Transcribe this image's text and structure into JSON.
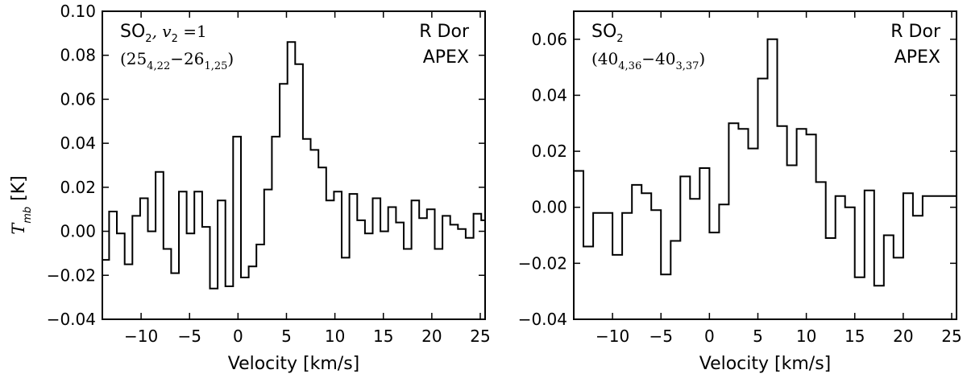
{
  "figure": {
    "ylabel_symbol": "T",
    "ylabel_sub": "mb",
    "ylabel_unit": " [K]"
  },
  "chart_data": [
    {
      "type": "line",
      "drawstyle": "steps-mid",
      "xlabel": "Velocity [km/s]",
      "ylabel": "T_mb [K]",
      "xlim": [
        -14,
        25.5
      ],
      "ylim": [
        -0.04,
        0.1
      ],
      "xticks": [
        -10,
        -5,
        0,
        5,
        10,
        15,
        20,
        25
      ],
      "xtick_labels": [
        "−10",
        "−5",
        "0",
        "5",
        "10",
        "15",
        "20",
        "25"
      ],
      "yticks": [
        -0.04,
        -0.02,
        0.0,
        0.02,
        0.04,
        0.06,
        0.08,
        0.1
      ],
      "ytick_labels": [
        "−0.04",
        "−0.02",
        "0.00",
        "0.02",
        "0.04",
        "0.06",
        "0.08",
        "0.10"
      ],
      "annotation_left": {
        "line1": "SO",
        "line1_sub": "2",
        "line1_rest": ", v",
        "line1_rest_sub": "2",
        "line1_end": " =1",
        "line2_open": "(25",
        "line2_sub1": "4,22",
        "line2_mid": "−26",
        "line2_sub2": "1,25",
        "line2_close": ")"
      },
      "annotation_right": {
        "line1": "R Dor",
        "line2": "APEX"
      },
      "x": [
        -13.7,
        -12.9,
        -12.1,
        -11.3,
        -10.5,
        -9.7,
        -8.9,
        -8.1,
        -7.3,
        -6.5,
        -5.7,
        -4.9,
        -4.1,
        -3.3,
        -2.5,
        -1.7,
        -0.9,
        -0.1,
        0.7,
        1.5,
        2.3,
        3.1,
        3.9,
        4.7,
        5.5,
        6.3,
        7.1,
        7.9,
        8.7,
        9.5,
        10.3,
        11.1,
        11.9,
        12.7,
        13.5,
        14.3,
        15.1,
        15.9,
        16.7,
        17.5,
        18.3,
        19.1,
        19.9,
        20.7,
        21.5,
        22.3,
        23.1,
        23.9,
        24.7,
        25.5
      ],
      "values": [
        -0.013,
        0.009,
        -0.001,
        -0.015,
        0.007,
        0.015,
        0.0,
        0.027,
        -0.008,
        -0.019,
        0.018,
        -0.001,
        0.018,
        0.002,
        -0.026,
        0.014,
        -0.025,
        0.043,
        -0.021,
        -0.016,
        -0.006,
        0.019,
        0.043,
        0.067,
        0.086,
        0.076,
        0.042,
        0.037,
        0.029,
        0.014,
        0.018,
        -0.012,
        0.017,
        0.005,
        -0.001,
        0.015,
        0.0,
        0.011,
        0.004,
        -0.008,
        0.014,
        0.006,
        0.01,
        -0.008,
        0.007,
        0.003,
        0.001,
        -0.003,
        0.008,
        0.005
      ]
    },
    {
      "type": "line",
      "drawstyle": "steps-mid",
      "xlabel": "Velocity [km/s]",
      "ylabel": "",
      "xlim": [
        -14,
        25.5
      ],
      "ylim": [
        -0.04,
        0.07
      ],
      "xticks": [
        -10,
        -5,
        0,
        5,
        10,
        15,
        20,
        25
      ],
      "xtick_labels": [
        "−10",
        "−5",
        "0",
        "5",
        "10",
        "15",
        "20",
        "25"
      ],
      "yticks": [
        -0.04,
        -0.02,
        0.0,
        0.02,
        0.04,
        0.06
      ],
      "ytick_labels": [
        "−0.04",
        "−0.02",
        "0.00",
        "0.02",
        "0.04",
        "0.06"
      ],
      "annotation_left": {
        "line1": "SO",
        "line1_sub": "2",
        "line2_open": "(40",
        "line2_sub1": "4,36",
        "line2_mid": "−40",
        "line2_sub2": "3,37",
        "line2_close": ")"
      },
      "annotation_right": {
        "line1": "R Dor",
        "line2": "APEX"
      },
      "x": [
        -13.5,
        -12.5,
        -11.5,
        -10.5,
        -9.5,
        -8.5,
        -7.5,
        -6.5,
        -5.5,
        -4.5,
        -3.5,
        -2.5,
        -1.5,
        -0.5,
        0.5,
        1.5,
        2.5,
        3.5,
        4.5,
        5.5,
        6.5,
        7.5,
        8.5,
        9.5,
        10.5,
        11.5,
        12.5,
        13.5,
        14.5,
        15.5,
        16.5,
        17.5,
        18.5,
        19.5,
        20.5,
        21.5,
        22.5,
        23.5,
        24.5,
        25.5
      ],
      "values": [
        0.013,
        -0.014,
        -0.002,
        -0.002,
        -0.017,
        -0.002,
        0.008,
        0.005,
        -0.001,
        -0.024,
        -0.012,
        0.011,
        0.003,
        0.014,
        -0.009,
        0.001,
        0.03,
        0.028,
        0.021,
        0.046,
        0.06,
        0.029,
        0.015,
        0.028,
        0.026,
        0.009,
        -0.011,
        0.004,
        0.0,
        -0.025,
        0.006,
        -0.028,
        -0.01,
        -0.018,
        0.005,
        -0.003,
        0.004,
        0.004,
        0.004,
        0.004
      ]
    }
  ]
}
